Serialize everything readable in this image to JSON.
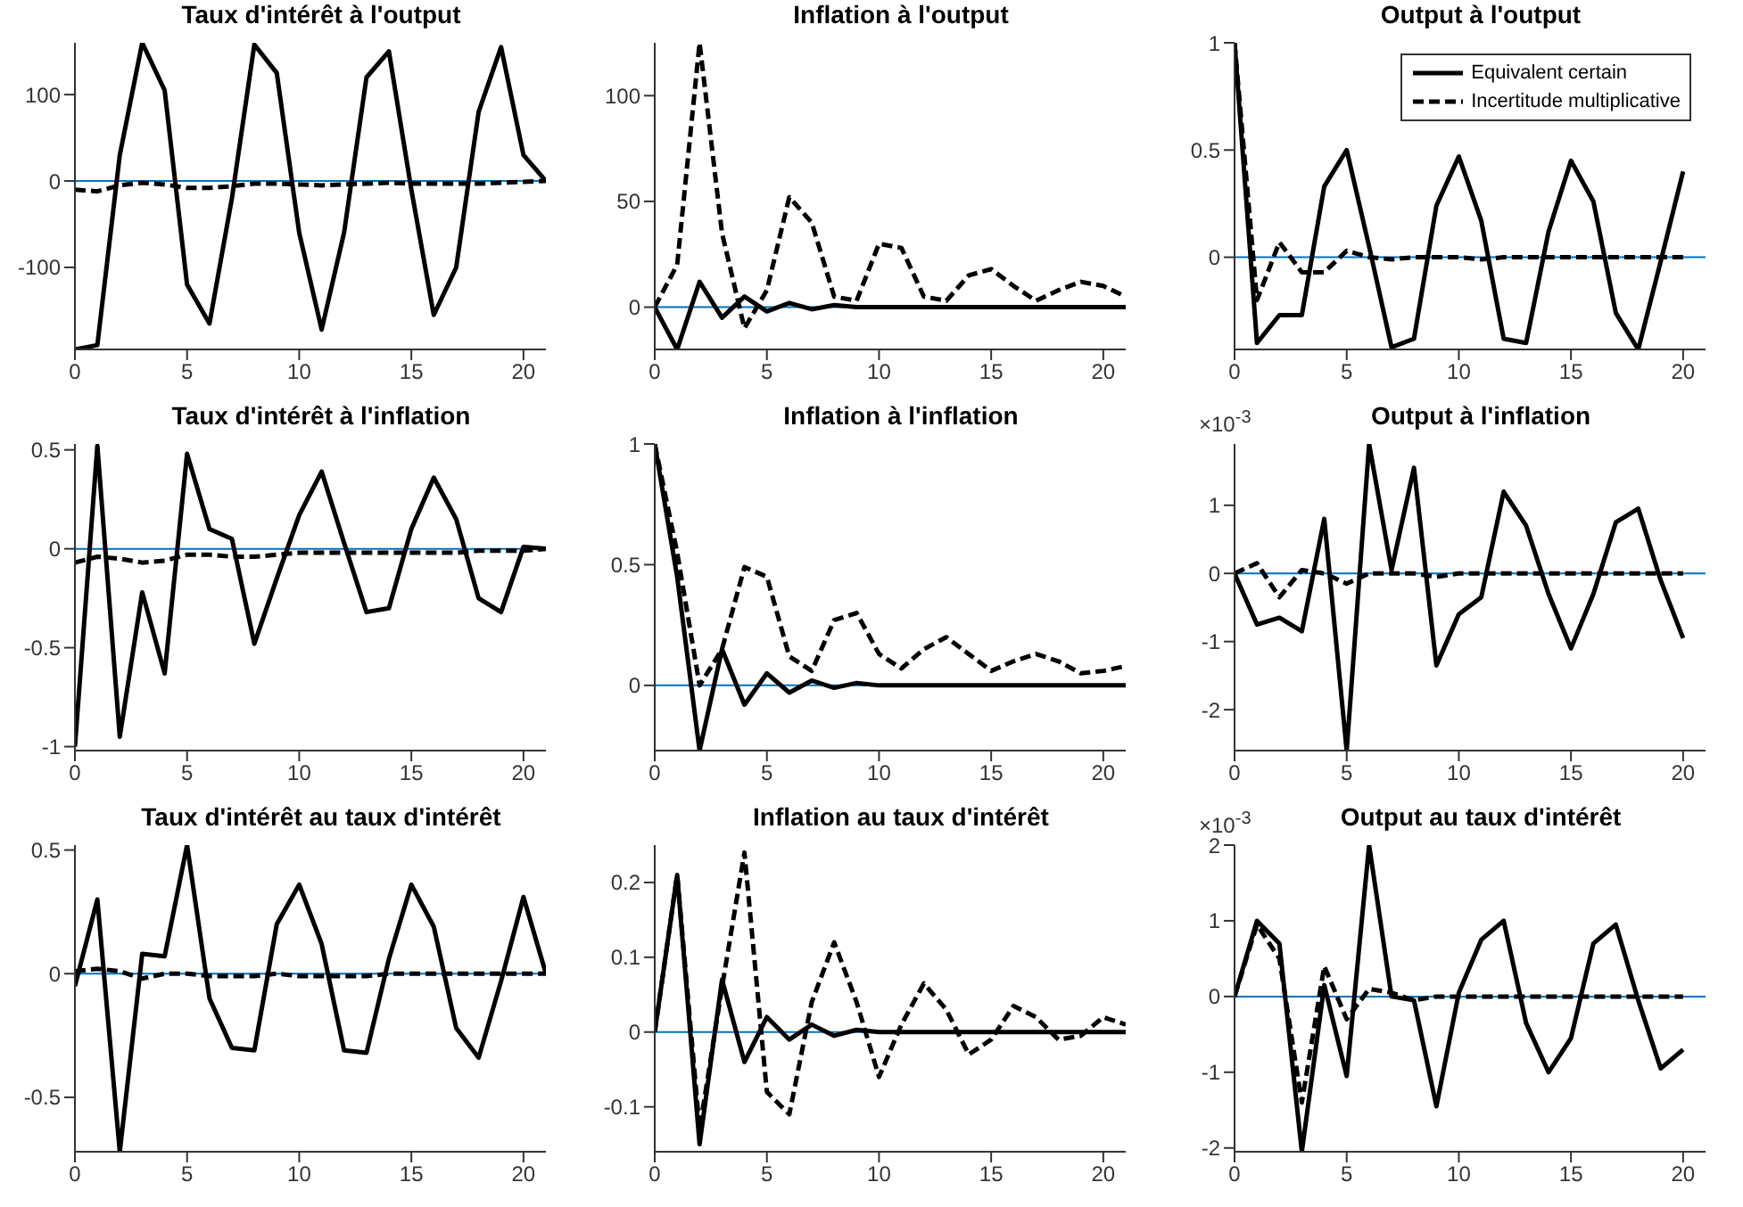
{
  "chart_data": [
    {
      "type": "line",
      "title": "Taux d'intérêt à l'output",
      "x": [
        0,
        1,
        2,
        3,
        4,
        5,
        6,
        7,
        8,
        9,
        10,
        11,
        12,
        13,
        14,
        15,
        16,
        17,
        18,
        19,
        20,
        21
      ],
      "xlim": [
        0,
        21
      ],
      "xticks": [
        0,
        5,
        10,
        15,
        20
      ],
      "ylim": [
        -195,
        160
      ],
      "yticks": [
        -100,
        0,
        100
      ],
      "series": [
        {
          "color": "#000000",
          "line_style": "solid",
          "values": [
            -195,
            -190,
            30,
            160,
            105,
            -120,
            -165,
            -20,
            158,
            125,
            -60,
            -172,
            -60,
            120,
            150,
            -10,
            -155,
            -100,
            80,
            155,
            30,
            0
          ]
        },
        {
          "color": "#000000",
          "line_style": "dashed",
          "values": [
            -10,
            -12,
            -5,
            -2,
            -4,
            -8,
            -8,
            -6,
            -3,
            -3,
            -4,
            -5,
            -4,
            -3,
            -2,
            -3,
            -3,
            -3,
            -3,
            -2,
            -1,
            0
          ]
        }
      ],
      "ref_lines": [
        {
          "axis": "y",
          "value": 0,
          "color": "#0072bd"
        }
      ]
    },
    {
      "type": "line",
      "title": "Inflation à l'output",
      "x": [
        0,
        1,
        2,
        3,
        4,
        5,
        6,
        7,
        8,
        9,
        10,
        11,
        12,
        13,
        14,
        15,
        16,
        17,
        18,
        19,
        20,
        21
      ],
      "xlim": [
        0,
        21
      ],
      "xticks": [
        0,
        5,
        10,
        15,
        20
      ],
      "ylim": [
        -20,
        125
      ],
      "yticks": [
        0,
        50,
        100
      ],
      "series": [
        {
          "color": "#000000",
          "line_style": "solid",
          "values": [
            0,
            -20,
            12,
            -5,
            5,
            -2,
            2,
            -1,
            1,
            0,
            0,
            0,
            0,
            0,
            0,
            0,
            0,
            0,
            0,
            0,
            0,
            0
          ]
        },
        {
          "color": "#000000",
          "line_style": "dashed",
          "values": [
            0,
            20,
            125,
            35,
            -10,
            8,
            52,
            40,
            5,
            3,
            30,
            28,
            5,
            3,
            15,
            18,
            10,
            3,
            8,
            12,
            10,
            5
          ]
        }
      ],
      "ref_lines": [
        {
          "axis": "y",
          "value": 0,
          "color": "#0072bd"
        }
      ]
    },
    {
      "type": "line",
      "title": "Output à l'output",
      "x": [
        0,
        1,
        2,
        3,
        4,
        5,
        6,
        7,
        8,
        9,
        10,
        11,
        12,
        13,
        14,
        15,
        16,
        17,
        18,
        19,
        20
      ],
      "xlim": [
        0,
        21
      ],
      "xticks": [
        0,
        5,
        10,
        15,
        20
      ],
      "ylim": [
        -0.43,
        1
      ],
      "yticks": [
        0,
        0.5,
        1
      ],
      "legend": "top right",
      "series": [
        {
          "name": "Equivalent certain",
          "color": "#000000",
          "line_style": "solid",
          "values": [
            1,
            -0.4,
            -0.27,
            -0.27,
            0.33,
            0.5,
            0.05,
            -0.42,
            -0.38,
            0.24,
            0.47,
            0.17,
            -0.38,
            -0.4,
            0.12,
            0.45,
            0.26,
            -0.26,
            -0.43,
            -0.02,
            0.4
          ]
        },
        {
          "name": "Incertitude multiplicative",
          "color": "#000000",
          "line_style": "dashed",
          "values": [
            1,
            -0.2,
            0.07,
            -0.07,
            -0.07,
            0.03,
            0,
            -0.01,
            0,
            0,
            0,
            -0.01,
            0,
            0,
            0,
            0,
            0,
            0,
            0,
            0,
            0
          ]
        }
      ],
      "ref_lines": [
        {
          "axis": "y",
          "value": 0,
          "color": "#0072bd"
        }
      ]
    },
    {
      "type": "line",
      "title": "Taux d'intérêt à l'inflation",
      "x": [
        0,
        1,
        2,
        3,
        4,
        5,
        6,
        7,
        8,
        9,
        10,
        11,
        12,
        13,
        14,
        15,
        16,
        17,
        18,
        19,
        20,
        21
      ],
      "xlim": [
        0,
        21
      ],
      "xticks": [
        0,
        5,
        10,
        15,
        20
      ],
      "ylim": [
        -1.02,
        0.53
      ],
      "yticks": [
        -1,
        -0.5,
        0,
        0.5
      ],
      "series": [
        {
          "color": "#000000",
          "line_style": "solid",
          "values": [
            -1,
            0.52,
            -0.95,
            -0.22,
            -0.63,
            0.48,
            0.1,
            0.05,
            -0.48,
            -0.15,
            0.17,
            0.39,
            0.03,
            -0.32,
            -0.3,
            0.1,
            0.36,
            0.15,
            -0.25,
            -0.32,
            0.01,
            0
          ]
        },
        {
          "color": "#000000",
          "line_style": "dashed",
          "values": [
            -0.07,
            -0.04,
            -0.05,
            -0.07,
            -0.06,
            -0.03,
            -0.03,
            -0.04,
            -0.04,
            -0.03,
            -0.02,
            -0.02,
            -0.02,
            -0.02,
            -0.02,
            -0.02,
            -0.02,
            -0.02,
            -0.01,
            -0.01,
            -0.01,
            0
          ]
        }
      ],
      "ref_lines": [
        {
          "axis": "y",
          "value": 0,
          "color": "#0072bd"
        }
      ]
    },
    {
      "type": "line",
      "title": "Inflation à l'inflation",
      "x": [
        0,
        1,
        2,
        3,
        4,
        5,
        6,
        7,
        8,
        9,
        10,
        11,
        12,
        13,
        14,
        15,
        16,
        17,
        18,
        19,
        20,
        21
      ],
      "xlim": [
        0,
        21
      ],
      "xticks": [
        0,
        5,
        10,
        15,
        20
      ],
      "ylim": [
        -0.27,
        1
      ],
      "yticks": [
        0,
        0.5,
        1
      ],
      "series": [
        {
          "color": "#000000",
          "line_style": "solid",
          "values": [
            1,
            0.45,
            -0.27,
            0.15,
            -0.08,
            0.05,
            -0.03,
            0.02,
            -0.01,
            0.01,
            0,
            0,
            0,
            0,
            0,
            0,
            0,
            0,
            0,
            0,
            0,
            0
          ]
        },
        {
          "color": "#000000",
          "line_style": "dashed",
          "values": [
            1,
            0.55,
            0,
            0.15,
            0.49,
            0.45,
            0.12,
            0.06,
            0.27,
            0.3,
            0.13,
            0.07,
            0.15,
            0.2,
            0.13,
            0.06,
            0.1,
            0.13,
            0.1,
            0.05,
            0.06,
            0.08
          ]
        }
      ],
      "ref_lines": [
        {
          "axis": "y",
          "value": 0,
          "color": "#0072bd"
        }
      ]
    },
    {
      "type": "line",
      "title": "Output à l'inflation",
      "annotations": [
        "×10$^{-3}$"
      ],
      "x": [
        0,
        1,
        2,
        3,
        4,
        5,
        6,
        7,
        8,
        9,
        10,
        11,
        12,
        13,
        14,
        15,
        16,
        17,
        18,
        19,
        20
      ],
      "xlim": [
        0,
        21
      ],
      "xticks": [
        0,
        5,
        10,
        15,
        20
      ],
      "ylim": [
        -2.6,
        1.9
      ],
      "yticks": [
        -2,
        -1,
        0,
        1
      ],
      "series": [
        {
          "color": "#000000",
          "line_style": "solid",
          "values": [
            0,
            -0.75,
            -0.65,
            -0.85,
            0.8,
            -2.6,
            1.9,
            0.05,
            1.55,
            -1.35,
            -0.6,
            -0.35,
            1.2,
            0.7,
            -0.3,
            -1.1,
            -0.3,
            0.75,
            0.95,
            -0.1,
            -0.95
          ]
        },
        {
          "color": "#000000",
          "line_style": "dashed",
          "values": [
            0,
            0.15,
            -0.35,
            0.05,
            0,
            -0.15,
            0,
            0,
            0,
            -0.05,
            0,
            0,
            0,
            0,
            0,
            0,
            0,
            0,
            0,
            0,
            0
          ]
        }
      ],
      "ref_lines": [
        {
          "axis": "y",
          "value": 0,
          "color": "#0072bd"
        }
      ]
    },
    {
      "type": "line",
      "title": "Taux d'intérêt au taux d'intérêt",
      "x": [
        0,
        1,
        2,
        3,
        4,
        5,
        6,
        7,
        8,
        9,
        10,
        11,
        12,
        13,
        14,
        15,
        16,
        17,
        18,
        19,
        20,
        21
      ],
      "xlim": [
        0,
        21
      ],
      "xticks": [
        0,
        5,
        10,
        15,
        20
      ],
      "ylim": [
        -0.72,
        0.52
      ],
      "yticks": [
        -0.5,
        0,
        0.5
      ],
      "series": [
        {
          "color": "#000000",
          "line_style": "solid",
          "values": [
            -0.05,
            0.3,
            -0.72,
            0.08,
            0.07,
            0.52,
            -0.1,
            -0.3,
            -0.31,
            0.2,
            0.36,
            0.12,
            -0.31,
            -0.32,
            0.06,
            0.36,
            0.19,
            -0.22,
            -0.34,
            -0.03,
            0.31,
            0
          ]
        },
        {
          "color": "#000000",
          "line_style": "dashed",
          "values": [
            0.01,
            0.02,
            0.01,
            -0.02,
            0,
            0,
            -0.01,
            -0.01,
            -0.01,
            0,
            -0.01,
            -0.01,
            -0.01,
            -0.01,
            0,
            0,
            0,
            0,
            0,
            0,
            0,
            0
          ]
        }
      ],
      "ref_lines": [
        {
          "axis": "y",
          "value": 0,
          "color": "#0072bd"
        }
      ]
    },
    {
      "type": "line",
      "title": "Inflation au taux d'intérêt",
      "x": [
        0,
        1,
        2,
        3,
        4,
        5,
        6,
        7,
        8,
        9,
        10,
        11,
        12,
        13,
        14,
        15,
        16,
        17,
        18,
        19,
        20,
        21
      ],
      "xlim": [
        0,
        21
      ],
      "xticks": [
        0,
        5,
        10,
        15,
        20
      ],
      "ylim": [
        -0.16,
        0.25
      ],
      "yticks": [
        -0.1,
        0,
        0.1,
        0.2
      ],
      "series": [
        {
          "color": "#000000",
          "line_style": "solid",
          "values": [
            0,
            0.21,
            -0.15,
            0.07,
            -0.04,
            0.02,
            -0.01,
            0.01,
            -0.005,
            0.003,
            0,
            0,
            0,
            0,
            0,
            0,
            0,
            0,
            0,
            0,
            0,
            0
          ]
        },
        {
          "color": "#000000",
          "line_style": "dashed",
          "values": [
            0,
            0.21,
            -0.13,
            0.06,
            0.24,
            -0.08,
            -0.11,
            0.04,
            0.12,
            0.04,
            -0.06,
            0.01,
            0.065,
            0.03,
            -0.03,
            -0.01,
            0.035,
            0.02,
            -0.01,
            -0.005,
            0.02,
            0.01
          ]
        }
      ],
      "ref_lines": [
        {
          "axis": "y",
          "value": 0,
          "color": "#0072bd"
        }
      ]
    },
    {
      "type": "line",
      "title": "Output au taux d'intérêt",
      "annotations": [
        "×10$^{-3}$"
      ],
      "x": [
        0,
        1,
        2,
        3,
        4,
        5,
        6,
        7,
        8,
        9,
        10,
        11,
        12,
        13,
        14,
        15,
        16,
        17,
        18,
        19,
        20
      ],
      "xlim": [
        0,
        21
      ],
      "xticks": [
        0,
        5,
        10,
        15,
        20
      ],
      "ylim": [
        -2.05,
        2
      ],
      "yticks": [
        -2,
        -1,
        0,
        1,
        2
      ],
      "series": [
        {
          "color": "#000000",
          "line_style": "solid",
          "values": [
            0,
            1,
            0.7,
            -2.05,
            0.15,
            -1.05,
            2,
            0,
            -0.05,
            -1.45,
            0.05,
            0.75,
            1,
            -0.35,
            -1,
            -0.55,
            0.7,
            0.95,
            -0.05,
            -0.95,
            -0.7
          ]
        },
        {
          "color": "#000000",
          "line_style": "dashed",
          "values": [
            0,
            0.95,
            0.5,
            -1.4,
            0.4,
            -0.3,
            0.1,
            0.05,
            -0.05,
            0,
            0,
            0,
            0,
            0,
            0,
            0,
            0,
            0,
            0,
            0,
            0
          ]
        }
      ],
      "ref_lines": [
        {
          "axis": "y",
          "value": 0,
          "color": "#0072bd"
        }
      ]
    }
  ]
}
